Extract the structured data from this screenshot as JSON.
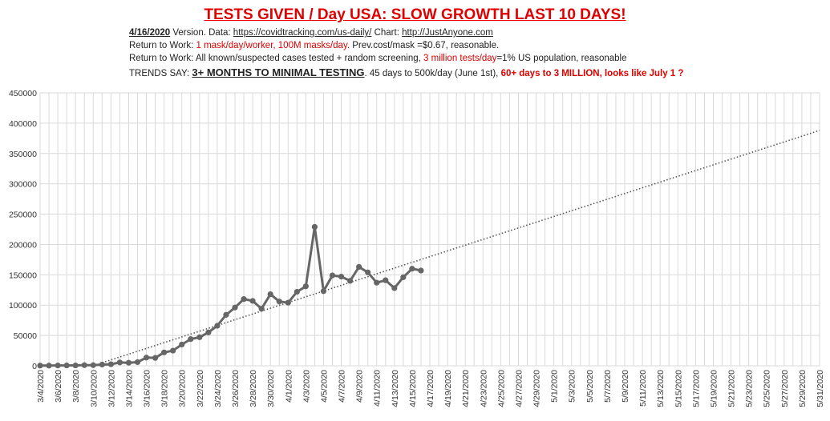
{
  "header": {
    "title": "TESTS GIVEN / Day USA:  SLOW GROWTH LAST 10 DAYS!",
    "line1": {
      "version": "4/16/2020",
      "version_suffix": " Version.  Data: ",
      "data_url": "https://covidtracking.com/us-daily/",
      "chart_label": " Chart: ",
      "chart_url": "http://JustAnyone.com"
    },
    "line2": {
      "prefix": "Return to Work: ",
      "highlight": "1 mask/day/worker, 100M masks/day.",
      "suffix": "  Prev.cost/mask =$0.67, reasonable."
    },
    "line3": {
      "prefix": "Return to Work: All known/suspected cases tested + random screening, ",
      "highlight": "3 million tests/day",
      "suffix": "=1% US population, reasonable"
    },
    "line4": {
      "prefix": "TRENDS SAY:  ",
      "emphasis": "3+ MONTHS TO MINIMAL TESTING",
      "middle": ".  45 days to 500k/day (June 1st), ",
      "highlight": "60+ days to 3 MILLION, looks like July 1 ?"
    }
  },
  "colors": {
    "title": "#e00000",
    "series": "#666666",
    "trend": "#555555",
    "grid": "#d9d9d9"
  },
  "chart_data": {
    "type": "line",
    "title": "",
    "xlabel": "",
    "ylabel": "",
    "ylim": [
      0,
      450000
    ],
    "yticks": [
      0,
      50000,
      100000,
      150000,
      200000,
      250000,
      300000,
      350000,
      400000,
      450000
    ],
    "x_start": "3/4/2020",
    "x_end": "5/31/2020",
    "x_tick_labels": [
      "3/4/2020",
      "3/6/2020",
      "3/8/2020",
      "3/10/2020",
      "3/12/2020",
      "3/14/2020",
      "3/16/2020",
      "3/18/2020",
      "3/20/2020",
      "3/22/2020",
      "3/24/2020",
      "3/26/2020",
      "3/28/2020",
      "3/30/2020",
      "4/1/2020",
      "4/3/2020",
      "4/5/2020",
      "4/7/2020",
      "4/9/2020",
      "4/11/2020",
      "4/13/2020",
      "4/15/2020",
      "4/17/2020",
      "4/19/2020",
      "4/21/2020",
      "4/23/2020",
      "4/25/2020",
      "4/27/2020",
      "4/29/2020",
      "5/1/2020",
      "5/3/2020",
      "5/5/2020",
      "5/7/2020",
      "5/9/2020",
      "5/11/2020",
      "5/13/2020",
      "5/15/2020",
      "5/17/2020",
      "5/19/2020",
      "5/21/2020",
      "5/23/2020",
      "5/25/2020",
      "5/27/2020",
      "5/29/2020",
      "5/31/2020"
    ],
    "grid": true,
    "legend": "none",
    "series": [
      {
        "x": [
          "3/4/2020",
          "3/5/2020",
          "3/6/2020",
          "3/7/2020",
          "3/8/2020",
          "3/9/2020",
          "3/10/2020",
          "3/11/2020",
          "3/12/2020",
          "3/13/2020",
          "3/14/2020",
          "3/15/2020",
          "3/16/2020",
          "3/17/2020",
          "3/18/2020",
          "3/19/2020",
          "3/20/2020",
          "3/21/2020",
          "3/22/2020",
          "3/23/2020",
          "3/24/2020",
          "3/25/2020",
          "3/26/2020",
          "3/27/2020",
          "3/28/2020",
          "3/29/2020",
          "3/30/2020",
          "3/31/2020",
          "4/1/2020",
          "4/2/2020",
          "4/3/2020",
          "4/4/2020",
          "4/5/2020",
          "4/6/2020",
          "4/7/2020",
          "4/8/2020",
          "4/9/2020",
          "4/10/2020",
          "4/11/2020",
          "4/12/2020",
          "4/13/2020",
          "4/14/2020",
          "4/15/2020",
          "4/16/2020"
        ],
        "values": [
          300,
          300,
          500,
          500,
          600,
          1000,
          1000,
          2000,
          2500,
          5500,
          5000,
          6000,
          13500,
          13000,
          22000,
          25000,
          35000,
          44000,
          47000,
          55000,
          66000,
          84000,
          96000,
          110000,
          107000,
          94000,
          118000,
          106000,
          104000,
          122000,
          131000,
          229000,
          123000,
          149000,
          147000,
          140000,
          163000,
          154000,
          137000,
          141000,
          128000,
          146000,
          160000,
          157000
        ]
      },
      {
        "type": "trendline",
        "style": "dotted",
        "x": [
          "3/11/2020",
          "5/31/2020"
        ],
        "values": [
          5000,
          388000
        ]
      }
    ]
  }
}
